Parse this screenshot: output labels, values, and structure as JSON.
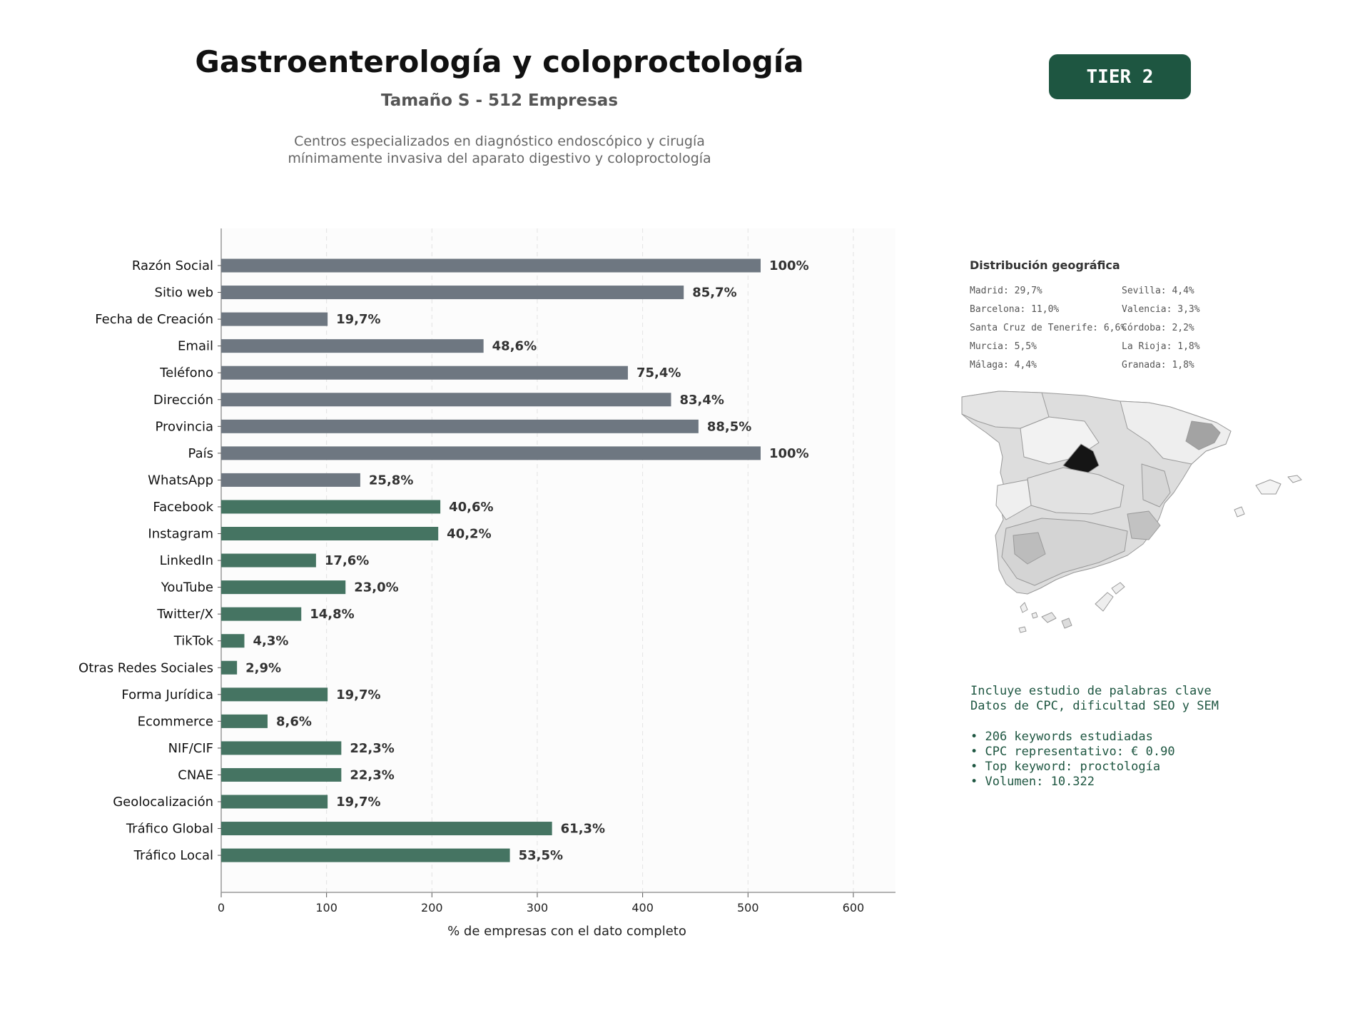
{
  "header": {
    "title": "Gastroenterología y coloproctología",
    "subtitle": "Tamaño S - 512 Empresas",
    "description_line1": "Centros especializados en diagnóstico endoscópico y cirugía",
    "description_line2": "mínimamente invasiva del aparato digestivo y coloproctología",
    "tier_badge": "TIER 2"
  },
  "colors": {
    "basic_bar": "#6e7781",
    "digital_bar": "#457462",
    "accent": "#1e5641"
  },
  "chart_data": {
    "type": "bar",
    "orientation": "horizontal",
    "xlabel": "% de empresas con el dato completo",
    "xlim": [
      0,
      640
    ],
    "xticks": [
      0,
      100,
      200,
      300,
      400,
      500,
      600
    ],
    "grid": "vertical dashed",
    "categories": [
      "Razón Social",
      "Sitio web",
      "Fecha de Creación",
      "Email",
      "Teléfono",
      "Dirección",
      "Provincia",
      "País",
      "WhatsApp",
      "Facebook",
      "Instagram",
      "LinkedIn",
      "YouTube",
      "Twitter/X",
      "TikTok",
      "Otras Redes Sociales",
      "Forma Jurídica",
      "Ecommerce",
      "NIF/CIF",
      "CNAE",
      "Geolocalización",
      "Tráfico Global",
      "Tráfico Local"
    ],
    "values": [
      512,
      439,
      101,
      249,
      386,
      427,
      453,
      512,
      132,
      208,
      206,
      90,
      118,
      76,
      22,
      15,
      101,
      44,
      114,
      114,
      101,
      314,
      274
    ],
    "labels": [
      "100%",
      "85,7%",
      "19,7%",
      "48,6%",
      "75,4%",
      "83,4%",
      "88,5%",
      "100%",
      "25,8%",
      "40,6%",
      "40,2%",
      "17,6%",
      "23,0%",
      "14,8%",
      "4,3%",
      "2,9%",
      "19,7%",
      "8,6%",
      "22,3%",
      "22,3%",
      "19,7%",
      "61,3%",
      "53,5%"
    ],
    "groups": [
      "basic",
      "basic",
      "basic",
      "basic",
      "basic",
      "basic",
      "basic",
      "basic",
      "basic",
      "digital",
      "digital",
      "digital",
      "digital",
      "digital",
      "digital",
      "digital",
      "digital",
      "digital",
      "digital",
      "digital",
      "digital",
      "digital",
      "digital"
    ]
  },
  "geo": {
    "title": "Distribución geográfica",
    "left": [
      "Madrid: 29,7%",
      "Barcelona: 11,0%",
      "Santa Cruz de Tenerife: 6,6%",
      "Murcia: 5,5%",
      "Málaga: 4,4%"
    ],
    "right": [
      "Sevilla: 4,4%",
      "Valencia: 3,3%",
      "Córdoba: 2,2%",
      "La Rioja: 1,8%",
      "Granada: 1,8%"
    ]
  },
  "keywords": {
    "line1": "Incluye estudio de palabras clave",
    "line2": "Datos de CPC, dificultad SEO y SEM",
    "bullets": [
      "• 206 keywords estudiadas",
      "• CPC representativo: € 0.90",
      "• Top keyword: proctología",
      "• Volumen: 10.322"
    ]
  }
}
